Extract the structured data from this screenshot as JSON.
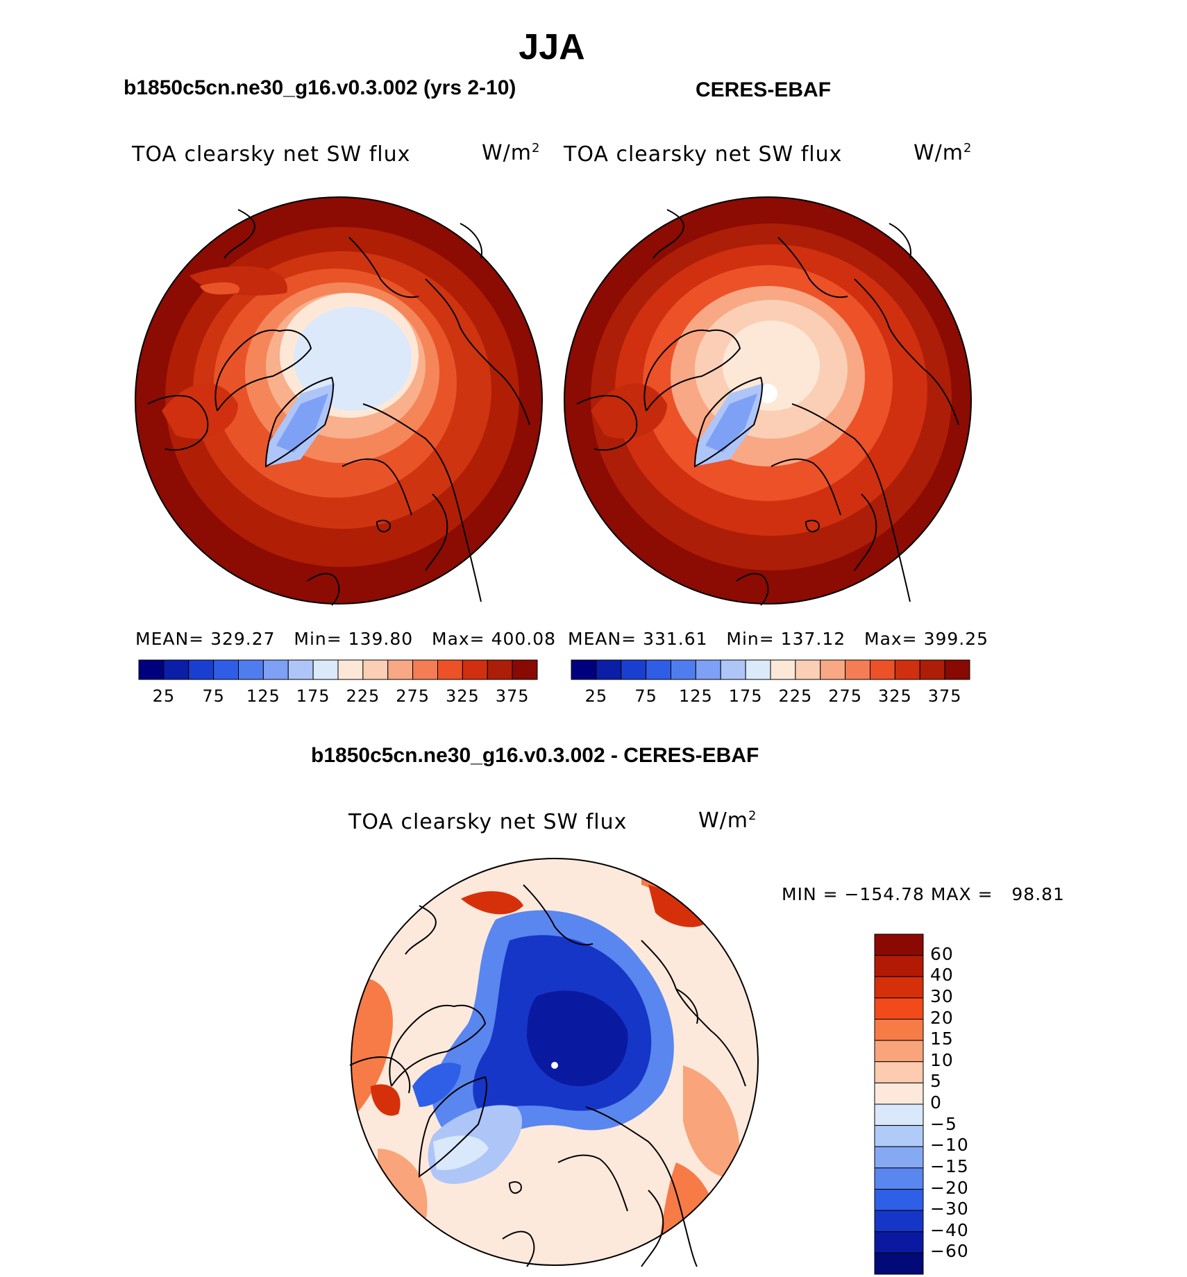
{
  "title": "JJA",
  "panels": [
    {
      "case_name": "b1850c5cn.ne30_g16.v0.3.002 (yrs 2-10)",
      "variable": "TOA clearsky net SW flux",
      "units_base": "W/m",
      "units_sup": "2",
      "stats": {
        "mean_label": "MEAN=",
        "mean": "329.27",
        "min_label": "Min=",
        "min": "139.80",
        "max_label": "Max=",
        "max": "400.08"
      }
    },
    {
      "case_name": "CERES-EBAF",
      "variable": "TOA clearsky net SW flux",
      "units_base": "W/m",
      "units_sup": "2",
      "stats": {
        "mean_label": "MEAN=",
        "mean": "331.61",
        "min_label": "Min=",
        "min": "137.12",
        "max_label": "Max=",
        "max": "399.25"
      }
    }
  ],
  "abs_colorbar": {
    "labels": [
      "25",
      "75",
      "125",
      "175",
      "225",
      "275",
      "325",
      "375"
    ],
    "colors": [
      "#00007f",
      "#0a1ea8",
      "#1a3fd0",
      "#2f5de6",
      "#4f7df0",
      "#7ea0f5",
      "#aec5f8",
      "#dbe9fb",
      "#fde8d8",
      "#fbcfb5",
      "#f8a884",
      "#f47d55",
      "#ec5128",
      "#d0300f",
      "#ac1e07",
      "#880a03"
    ]
  },
  "diff_panel": {
    "title": "b1850c5cn.ne30_g16.v0.3.002 - CERES-EBAF",
    "variable": "TOA clearsky net SW flux",
    "units_base": "W/m",
    "units_sup": "2",
    "minmax": "MIN = −154.78 MAX =   98.81"
  },
  "diff_colorbar": {
    "labels": [
      "60",
      "40",
      "30",
      "20",
      "15",
      "10",
      "5",
      "0",
      "−5",
      "−10",
      "−15",
      "−20",
      "−30",
      "−40",
      "−60"
    ],
    "colors": [
      "#8a0a03",
      "#b21a05",
      "#d6300a",
      "#f24a1a",
      "#f67b46",
      "#f9a47a",
      "#fccbb0",
      "#fde9dc",
      "#d9e8fb",
      "#b0cbf8",
      "#86a9f4",
      "#5a86ef",
      "#2e5fe6",
      "#1636c8",
      "#0a1aa0",
      "#020a78"
    ]
  }
}
